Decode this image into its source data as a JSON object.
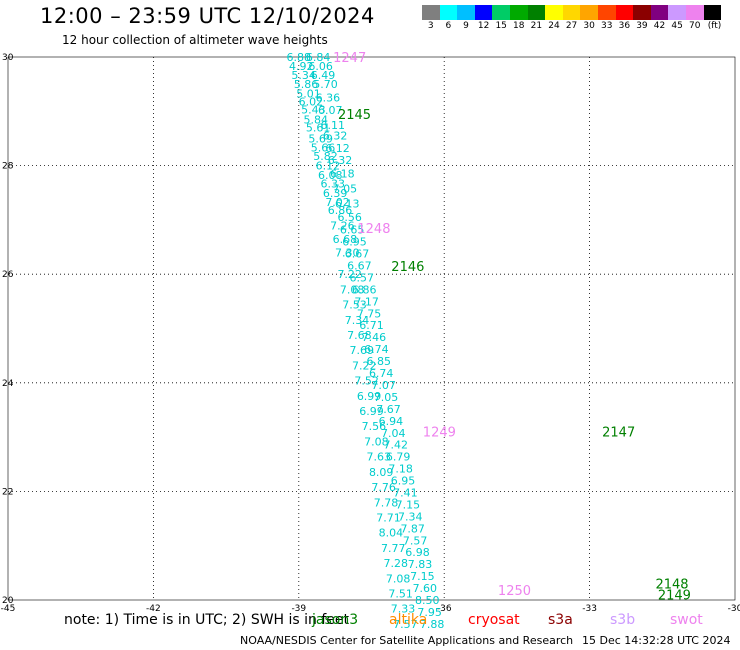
{
  "header": {
    "title": "12:00 – 23:59 UTC 12/10/2024",
    "subtitle": "12 hour collection of altimeter wave heights"
  },
  "colorbar": {
    "unit": "(ft)",
    "ticks": [
      "3",
      "6",
      "9",
      "12",
      "15",
      "18",
      "21",
      "24",
      "27",
      "30",
      "33",
      "36",
      "39",
      "42",
      "45",
      "70"
    ],
    "colors": [
      "#7f7f7f",
      "#00ffff",
      "#00bfff",
      "#0000ff",
      "#00cc66",
      "#00aa00",
      "#008000",
      "#ffff00",
      "#ffd700",
      "#ffa500",
      "#ff4500",
      "#ff0000",
      "#8b0000",
      "#800080",
      "#cc99ff",
      "#ee82ee",
      "#000000"
    ]
  },
  "chart_data": {
    "type": "scatter",
    "xlim": [
      -45,
      -30
    ],
    "ylim": [
      20,
      30
    ],
    "x_ticks": [
      "-45",
      "-42",
      "-39",
      "-36",
      "-33",
      "-30"
    ],
    "y_ticks": [
      "20",
      "22",
      "24",
      "26",
      "28",
      "30"
    ],
    "grid": true,
    "series": [
      {
        "color": "#00cccc",
        "points": [
          {
            "lon": -39.0,
            "lat": 30.0,
            "h": "6.88"
          },
          {
            "lon": -38.95,
            "lat": 29.83,
            "h": "4.92"
          },
          {
            "lon": -38.9,
            "lat": 29.67,
            "h": "5.34"
          },
          {
            "lon": -38.85,
            "lat": 29.5,
            "h": "5.86"
          },
          {
            "lon": -38.8,
            "lat": 29.33,
            "h": "5.01"
          },
          {
            "lon": -38.75,
            "lat": 29.18,
            "h": "6.02"
          },
          {
            "lon": -38.7,
            "lat": 29.03,
            "h": "5.43"
          },
          {
            "lon": -38.65,
            "lat": 28.85,
            "h": "5.84"
          },
          {
            "lon": -38.6,
            "lat": 28.7,
            "h": "5.61"
          },
          {
            "lon": -38.55,
            "lat": 28.5,
            "h": "5.69"
          },
          {
            "lon": -38.5,
            "lat": 28.33,
            "h": "5.66"
          },
          {
            "lon": -38.45,
            "lat": 28.18,
            "h": "5.82"
          },
          {
            "lon": -38.4,
            "lat": 28.0,
            "h": "6.12"
          },
          {
            "lon": -38.35,
            "lat": 27.83,
            "h": "6.08"
          },
          {
            "lon": -38.3,
            "lat": 27.67,
            "h": "6.33"
          },
          {
            "lon": -38.25,
            "lat": 27.5,
            "h": "6.39"
          },
          {
            "lon": -38.2,
            "lat": 27.33,
            "h": "7.02"
          },
          {
            "lon": -38.15,
            "lat": 27.18,
            "h": "6.86"
          },
          {
            "lon": -38.1,
            "lat": 26.9,
            "h": "7.26"
          },
          {
            "lon": -38.05,
            "lat": 26.65,
            "h": "6.68"
          },
          {
            "lon": -38.0,
            "lat": 26.4,
            "h": "7.30"
          },
          {
            "lon": -37.95,
            "lat": 26.0,
            "h": "7.22"
          },
          {
            "lon": -37.9,
            "lat": 25.72,
            "h": "7.08"
          },
          {
            "lon": -37.85,
            "lat": 25.44,
            "h": "7.53"
          },
          {
            "lon": -37.8,
            "lat": 25.16,
            "h": "7.34"
          },
          {
            "lon": -37.75,
            "lat": 24.88,
            "h": "7.68"
          },
          {
            "lon": -37.7,
            "lat": 24.6,
            "h": "7.69"
          },
          {
            "lon": -37.65,
            "lat": 24.32,
            "h": "7.22"
          },
          {
            "lon": -37.6,
            "lat": 24.04,
            "h": "7.52"
          },
          {
            "lon": -37.55,
            "lat": 23.76,
            "h": "6.99"
          },
          {
            "lon": -37.5,
            "lat": 23.48,
            "h": "6.99"
          },
          {
            "lon": -37.45,
            "lat": 23.2,
            "h": "7.56"
          },
          {
            "lon": -37.4,
            "lat": 22.92,
            "h": "7.08"
          },
          {
            "lon": -37.35,
            "lat": 22.64,
            "h": "7.63"
          },
          {
            "lon": -37.3,
            "lat": 22.36,
            "h": "8.09"
          },
          {
            "lon": -37.25,
            "lat": 22.08,
            "h": "7.76"
          },
          {
            "lon": -37.2,
            "lat": 21.8,
            "h": "7.78"
          },
          {
            "lon": -37.15,
            "lat": 21.52,
            "h": "7.71"
          },
          {
            "lon": -37.1,
            "lat": 21.24,
            "h": "8.04"
          },
          {
            "lon": -37.05,
            "lat": 20.96,
            "h": "7.77"
          },
          {
            "lon": -37.0,
            "lat": 20.68,
            "h": "7.28"
          },
          {
            "lon": -36.95,
            "lat": 20.4,
            "h": "7.08"
          },
          {
            "lon": -36.9,
            "lat": 20.12,
            "h": "7.51"
          },
          {
            "lon": -36.85,
            "lat": 19.84,
            "h": "7.33"
          },
          {
            "lon": -36.8,
            "lat": 19.56,
            "h": "7.57"
          }
        ]
      },
      {
        "color": "#00cccc",
        "points": [
          {
            "lon": -38.6,
            "lat": 30.0,
            "h": "6.84"
          },
          {
            "lon": -38.55,
            "lat": 29.83,
            "h": "6.06"
          },
          {
            "lon": -38.5,
            "lat": 29.67,
            "h": "6.49"
          },
          {
            "lon": -38.45,
            "lat": 29.5,
            "h": "5.70"
          },
          {
            "lon": -38.4,
            "lat": 29.25,
            "h": "6.36"
          },
          {
            "lon": -38.35,
            "lat": 29.02,
            "h": "6.07"
          },
          {
            "lon": -38.3,
            "lat": 28.75,
            "h": "6.11"
          },
          {
            "lon": -38.25,
            "lat": 28.55,
            "h": "6.32"
          },
          {
            "lon": -38.2,
            "lat": 28.32,
            "h": "6.12"
          },
          {
            "lon": -38.15,
            "lat": 28.1,
            "h": "6.32"
          },
          {
            "lon": -38.1,
            "lat": 27.85,
            "h": "6.18"
          },
          {
            "lon": -38.05,
            "lat": 27.58,
            "h": "7.05"
          },
          {
            "lon": -38.0,
            "lat": 27.3,
            "h": "6.13"
          },
          {
            "lon": -37.95,
            "lat": 27.05,
            "h": "6.56"
          },
          {
            "lon": -37.9,
            "lat": 26.82,
            "h": "6.65"
          },
          {
            "lon": -37.85,
            "lat": 26.6,
            "h": "6.95"
          },
          {
            "lon": -37.8,
            "lat": 26.38,
            "h": "6.67"
          },
          {
            "lon": -37.75,
            "lat": 26.16,
            "h": "6.67"
          },
          {
            "lon": -37.7,
            "lat": 25.94,
            "h": "6.57"
          },
          {
            "lon": -37.65,
            "lat": 25.72,
            "h": "6.86"
          },
          {
            "lon": -37.6,
            "lat": 25.5,
            "h": "7.17"
          },
          {
            "lon": -37.55,
            "lat": 25.28,
            "h": "7.75"
          },
          {
            "lon": -37.5,
            "lat": 25.06,
            "h": "6.71"
          },
          {
            "lon": -37.45,
            "lat": 24.84,
            "h": "7.46"
          },
          {
            "lon": -37.4,
            "lat": 24.62,
            "h": "6.74"
          },
          {
            "lon": -37.35,
            "lat": 24.4,
            "h": "6.85"
          },
          {
            "lon": -37.3,
            "lat": 24.18,
            "h": "6.74"
          },
          {
            "lon": -37.25,
            "lat": 23.96,
            "h": "7.07"
          },
          {
            "lon": -37.2,
            "lat": 23.74,
            "h": "7.05"
          },
          {
            "lon": -37.15,
            "lat": 23.52,
            "h": "7.67"
          },
          {
            "lon": -37.1,
            "lat": 23.3,
            "h": "6.94"
          },
          {
            "lon": -37.05,
            "lat": 23.08,
            "h": "7.04"
          },
          {
            "lon": -37.0,
            "lat": 22.86,
            "h": "7.42"
          },
          {
            "lon": -36.95,
            "lat": 22.64,
            "h": "6.79"
          },
          {
            "lon": -36.9,
            "lat": 22.42,
            "h": "7.18"
          },
          {
            "lon": -36.85,
            "lat": 22.2,
            "h": "6.95"
          },
          {
            "lon": -36.8,
            "lat": 21.98,
            "h": "7.41"
          },
          {
            "lon": -36.75,
            "lat": 21.76,
            "h": "7.15"
          },
          {
            "lon": -36.7,
            "lat": 21.54,
            "h": "7.34"
          },
          {
            "lon": -36.65,
            "lat": 21.32,
            "h": "7.87"
          },
          {
            "lon": -36.6,
            "lat": 21.1,
            "h": "7.57"
          },
          {
            "lon": -36.55,
            "lat": 20.88,
            "h": "6.98"
          },
          {
            "lon": -36.5,
            "lat": 20.66,
            "h": "7.83"
          },
          {
            "lon": -36.45,
            "lat": 20.44,
            "h": "7.15"
          },
          {
            "lon": -36.4,
            "lat": 20.22,
            "h": "7.60"
          },
          {
            "lon": -36.35,
            "lat": 20.0,
            "h": "8.50"
          },
          {
            "lon": -36.3,
            "lat": 19.78,
            "h": "7.95"
          },
          {
            "lon": -36.25,
            "lat": 19.56,
            "h": "7.88"
          }
        ]
      }
    ],
    "time_labels": [
      {
        "text": "1247",
        "lon": -37.95,
        "lat": 30.0,
        "color": "#ee82ee"
      },
      {
        "text": "2145",
        "lon": -37.85,
        "lat": 28.95,
        "color": "#008000"
      },
      {
        "text": "1248",
        "lon": -37.45,
        "lat": 26.85,
        "color": "#ee82ee"
      },
      {
        "text": "2146",
        "lon": -36.75,
        "lat": 26.15,
        "color": "#008000"
      },
      {
        "text": "1249",
        "lon": -36.1,
        "lat": 23.1,
        "color": "#ee82ee"
      },
      {
        "text": "2147",
        "lon": -32.4,
        "lat": 23.1,
        "color": "#008000"
      },
      {
        "text": "1250",
        "lon": -34.55,
        "lat": 20.18,
        "color": "#ee82ee"
      },
      {
        "text": "2148",
        "lon": -31.3,
        "lat": 20.3,
        "color": "#008000"
      },
      {
        "text": "2149",
        "lon": -31.25,
        "lat": 20.1,
        "color": "#008000"
      }
    ]
  },
  "note": {
    "text": "note: 1) Time is in UTC; 2) SWH is in feet",
    "satellites": [
      {
        "name": "jason3",
        "color": "#008000"
      },
      {
        "name": "altika",
        "color": "#ff8c00"
      },
      {
        "name": "cryosat",
        "color": "#ff0000"
      },
      {
        "name": "s3a",
        "color": "#8b0000"
      },
      {
        "name": "s3b",
        "color": "#cc99ff"
      },
      {
        "name": "swot",
        "color": "#ee82ee"
      }
    ]
  },
  "footer": {
    "credit": "NOAA/NESDIS Center for Satellite Applications and Research",
    "timestamp": "15 Dec 14:32:28 UTC 2024"
  }
}
